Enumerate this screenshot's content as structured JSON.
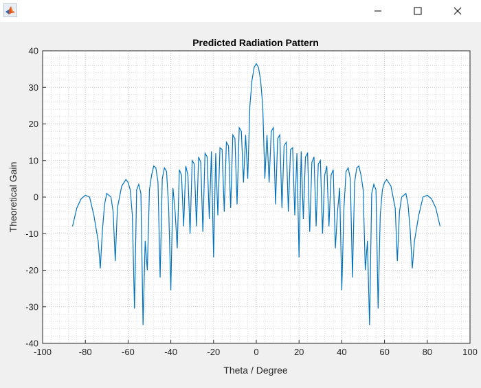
{
  "window": {
    "icons": [
      "matlab-logo-icon",
      "minimize-icon",
      "maximize-icon",
      "close-icon"
    ]
  },
  "chart_data": {
    "type": "line",
    "title": "Predicted Radiation Pattern",
    "xlabel": "Theta / Degree",
    "ylabel": "Theoretical Gain",
    "xlim": [
      -100,
      100
    ],
    "ylim": [
      -40,
      40
    ],
    "xticks": [
      -100,
      -80,
      -60,
      -40,
      -20,
      0,
      20,
      40,
      60,
      80,
      100
    ],
    "yticks": [
      -40,
      -30,
      -20,
      -10,
      0,
      10,
      20,
      30,
      40
    ],
    "grid": true,
    "minor_grid": true,
    "series_color": "#0072bd",
    "series": [
      {
        "x": [
          -86,
          -84,
          -82,
          -80,
          -78,
          -76,
          -74,
          -73,
          -72,
          -71,
          -70,
          -68,
          -67,
          -66,
          -65,
          -63,
          -61,
          -60,
          -59,
          -58,
          -57,
          -56,
          -55,
          -54,
          -53,
          -52,
          -51,
          -50,
          -49,
          -48,
          -47,
          -46,
          -45,
          -44,
          -43,
          -42,
          -41,
          -40,
          -39,
          -38,
          -37,
          -36,
          -35,
          -34,
          -33,
          -32,
          -31,
          -30,
          -29,
          -28,
          -27,
          -26,
          -25,
          -24,
          -23,
          -22,
          -21,
          -20,
          -19,
          -18,
          -17,
          -16,
          -15,
          -14,
          -13,
          -12,
          -11,
          -10,
          -9,
          -8,
          -7,
          -6,
          -5,
          -4,
          -3,
          -2,
          -1,
          0,
          1,
          2,
          3,
          4,
          5,
          6,
          7,
          8,
          9,
          10,
          11,
          12,
          13,
          14,
          15,
          16,
          17,
          18,
          19,
          20,
          21,
          22,
          23,
          24,
          25,
          26,
          27,
          28,
          29,
          30,
          31,
          32,
          33,
          34,
          35,
          36,
          37,
          38,
          39,
          40,
          41,
          42,
          43,
          44,
          45,
          46,
          47,
          48,
          49,
          50,
          51,
          52,
          53,
          54,
          55,
          56,
          57,
          58,
          59,
          60,
          61,
          63,
          65,
          66,
          67,
          68,
          70,
          71,
          72,
          73,
          74,
          76,
          78,
          80,
          82,
          84,
          86
        ],
        "y": [
          -8,
          -3,
          -0.5,
          0.5,
          0,
          -5,
          -12,
          -19.5,
          -9,
          -2,
          1,
          0,
          -4,
          -17.5,
          -3,
          3,
          4.8,
          4,
          2,
          -5,
          -30.5,
          2,
          3.5,
          1,
          -35,
          -12,
          -20,
          2,
          6,
          8.5,
          8,
          4,
          -22,
          5,
          8,
          7,
          -3,
          -25.5,
          2.5,
          -4,
          -14,
          7.5,
          6,
          -8,
          8.5,
          6,
          -10,
          10,
          9,
          -8,
          11,
          9.5,
          -9.5,
          12,
          11,
          -6,
          12.5,
          -16.5,
          12,
          -5,
          13.5,
          13,
          -4,
          15,
          14,
          -3,
          17,
          16,
          -2,
          19,
          18,
          4,
          17,
          5,
          25,
          32,
          35.5,
          36.5,
          35.5,
          32,
          25,
          5,
          17,
          4,
          18,
          19,
          -2,
          16,
          17,
          -3,
          14,
          15,
          -4,
          13,
          13.5,
          -5,
          12,
          -16.5,
          12.5,
          -6,
          11,
          12,
          -9.5,
          9.5,
          11,
          -8,
          9,
          10,
          -10,
          6,
          8.5,
          -8,
          6,
          7.5,
          -14,
          -4,
          2.5,
          -25.5,
          -3,
          7,
          8,
          5,
          -22,
          4,
          8,
          8.5,
          6,
          2,
          -20,
          -12,
          -35,
          1,
          3.5,
          2,
          -30.5,
          -5,
          2,
          4,
          4.8,
          3,
          -3,
          -17.5,
          -4,
          0,
          1,
          -2,
          -9,
          -19.5,
          -12,
          -5,
          0,
          0.5,
          -0.5,
          -3,
          -8
        ]
      }
    ]
  }
}
